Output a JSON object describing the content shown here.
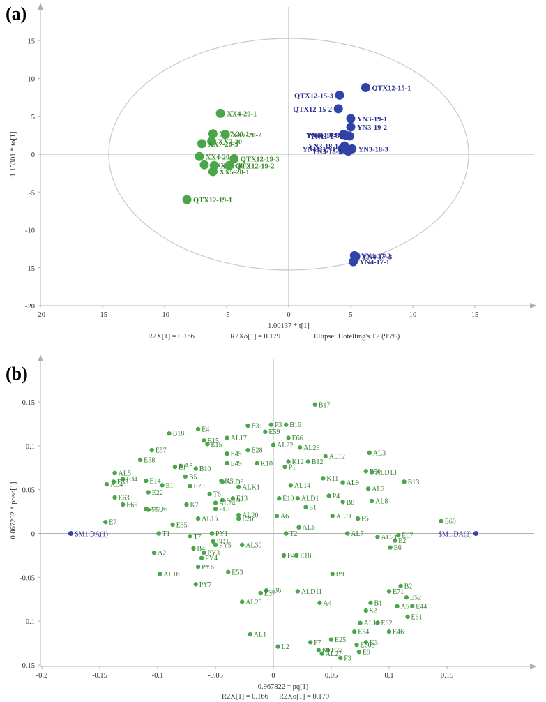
{
  "colors": {
    "green": "#4aa64a",
    "blue": "#3043a8",
    "axis": "#b0b0b0",
    "ellipse": "#c8c8c8"
  },
  "chart_data": [
    {
      "panel": "(a)",
      "type": "scatter",
      "xlabel": "1.00137 * t[1]",
      "ylabel": "1.15301 * to[1]",
      "xlim": [
        -20,
        20
      ],
      "ylim": [
        -20,
        20
      ],
      "xticks": [
        "-20",
        "-15",
        "-10",
        "-5",
        "0",
        "5",
        "10",
        "15"
      ],
      "yticks": [
        "-20",
        "-15",
        "-10",
        "-5",
        "0",
        "5",
        "10",
        "15"
      ],
      "annotations": [
        "R2X[1] = 0.166",
        "R2Xo[1] = 0.179",
        "Ellipse: Hotelling's T2 (95%)"
      ],
      "ellipse": {
        "rx": 14.5,
        "ry": 15.3
      },
      "series": [
        {
          "name": "green",
          "points": [
            {
              "label": "XX4-20-1",
              "x": -5.5,
              "y": 5.4
            },
            {
              "label": "XX7-20-1",
              "x": -6.1,
              "y": 2.7
            },
            {
              "label": "XX7-20-2",
              "x": -5.1,
              "y": 2.6
            },
            {
              "label": "XX7-20",
              "x": -6.2,
              "y": 1.7
            },
            {
              "label": "XX7-20-3",
              "x": -7.0,
              "y": 1.4
            },
            {
              "label": "XX4-20-2",
              "x": -7.2,
              "y": -0.3
            },
            {
              "label": "QTX12-19-3",
              "x": -4.4,
              "y": -0.6
            },
            {
              "label": "XX5-20-2",
              "x": -6.8,
              "y": -1.4
            },
            {
              "label": "XX4-20-3",
              "x": -6.0,
              "y": -1.5
            },
            {
              "label": "QTX12-19-2",
              "x": -4.8,
              "y": -1.5
            },
            {
              "label": "XX5-20-1",
              "x": -6.1,
              "y": -2.3
            },
            {
              "label": "QTX12-19-1",
              "x": -8.2,
              "y": -6.0
            }
          ]
        },
        {
          "name": "blue",
          "points": [
            {
              "label": "QTX12-15-1",
              "x": 6.2,
              "y": 8.8
            },
            {
              "label": "QTX12-15-3",
              "x": 4.1,
              "y": 7.8
            },
            {
              "label": "QTX12-15-2",
              "x": 4.0,
              "y": 6.0
            },
            {
              "label": "YN3-19-1",
              "x": 5.0,
              "y": 4.7
            },
            {
              "label": "YN3-19-2",
              "x": 5.0,
              "y": 3.6
            },
            {
              "label": "YN3-19-3",
              "x": 4.4,
              "y": 2.6
            },
            {
              "label": "YN11-17-3",
              "x": 4.6,
              "y": 2.5
            },
            {
              "label": "YN11-17-2",
              "x": 4.9,
              "y": 2.4
            },
            {
              "label": "YN3-18-1",
              "x": 4.5,
              "y": 1.1
            },
            {
              "label": "YN11-17-1",
              "x": 4.3,
              "y": 0.7
            },
            {
              "label": "YN3-18-3",
              "x": 5.1,
              "y": 0.7
            },
            {
              "label": "YN3-18-2",
              "x": 4.8,
              "y": 0.4
            },
            {
              "label": "YN4-17-2",
              "x": 5.3,
              "y": -13.4
            },
            {
              "label": "YN4-17-3",
              "x": 5.4,
              "y": -13.5
            },
            {
              "label": "YN4-17-1",
              "x": 5.2,
              "y": -14.2
            }
          ]
        }
      ]
    },
    {
      "panel": "(b)",
      "type": "scatter",
      "xlabel": "0.967822 * pq[1]",
      "ylabel": "0.867292 * poso[1]",
      "xlim": [
        -0.2,
        0.2
      ],
      "ylim": [
        -0.15,
        0.15
      ],
      "xticks": [
        "-0.2",
        "-0.15",
        "-0.1",
        "-0.05",
        "0",
        "0.05",
        "0.1",
        "0.15"
      ],
      "yticks": [
        "-0.15",
        "-0.1",
        "-0.05",
        "0",
        "0.05",
        "0.1",
        "0.15"
      ],
      "annotations": [
        "R2X[1] = 0.166",
        "R2Xo[1] = 0.179"
      ],
      "series": [
        {
          "name": "class",
          "points": [
            {
              "label": "$M1.DA(1)",
              "x": -0.175,
              "y": 0.0
            },
            {
              "label": "$M1.DA(2)",
              "x": 0.175,
              "y": 0.0
            }
          ]
        },
        {
          "name": "variables",
          "points": [
            {
              "label": "B17",
              "x": 0.036,
              "y": 0.147
            },
            {
              "label": "B18",
              "x": -0.09,
              "y": 0.114
            },
            {
              "label": "E4",
              "x": -0.065,
              "y": 0.119
            },
            {
              "label": "B15",
              "x": -0.06,
              "y": 0.106
            },
            {
              "label": "E15",
              "x": -0.057,
              "y": 0.102
            },
            {
              "label": "AL17",
              "x": -0.04,
              "y": 0.109
            },
            {
              "label": "E31",
              "x": -0.022,
              "y": 0.123
            },
            {
              "label": "P3",
              "x": -0.002,
              "y": 0.124
            },
            {
              "label": "B16",
              "x": 0.011,
              "y": 0.124
            },
            {
              "label": "E59",
              "x": -0.007,
              "y": 0.116
            },
            {
              "label": "E66",
              "x": 0.013,
              "y": 0.109
            },
            {
              "label": "AL22",
              "x": 0.0,
              "y": 0.101
            },
            {
              "label": "AL29",
              "x": 0.023,
              "y": 0.098
            },
            {
              "label": "E57",
              "x": -0.105,
              "y": 0.095
            },
            {
              "label": "E58",
              "x": -0.115,
              "y": 0.084
            },
            {
              "label": "E28",
              "x": -0.022,
              "y": 0.095
            },
            {
              "label": "E45",
              "x": -0.04,
              "y": 0.091
            },
            {
              "label": "AL3",
              "x": 0.083,
              "y": 0.092
            },
            {
              "label": "A8",
              "x": -0.08,
              "y": 0.077
            },
            {
              "label": "L1",
              "x": -0.085,
              "y": 0.076
            },
            {
              "label": "B10",
              "x": -0.067,
              "y": 0.074
            },
            {
              "label": "E49",
              "x": -0.04,
              "y": 0.08
            },
            {
              "label": "K10",
              "x": -0.014,
              "y": 0.08
            },
            {
              "label": "B12",
              "x": 0.03,
              "y": 0.082
            },
            {
              "label": "K12",
              "x": 0.013,
              "y": 0.082
            },
            {
              "label": "P1",
              "x": 0.01,
              "y": 0.076
            },
            {
              "label": "AL12",
              "x": 0.045,
              "y": 0.088
            },
            {
              "label": "B13",
              "x": 0.113,
              "y": 0.059
            },
            {
              "label": "AL5",
              "x": -0.137,
              "y": 0.069
            },
            {
              "label": "AL4",
              "x": -0.144,
              "y": 0.056
            },
            {
              "label": "E63",
              "x": -0.137,
              "y": 0.041
            },
            {
              "label": "E65",
              "x": -0.13,
              "y": 0.033
            },
            {
              "label": "F5",
              "x": 0.073,
              "y": 0.017
            },
            {
              "label": "E7",
              "x": -0.145,
              "y": 0.013
            },
            {
              "label": "E35",
              "x": -0.087,
              "y": 0.01
            },
            {
              "label": "E60",
              "x": 0.145,
              "y": 0.014
            },
            {
              "label": "T1",
              "x": -0.099,
              "y": 0.0
            },
            {
              "label": "T7",
              "x": -0.072,
              "y": -0.003
            },
            {
              "label": "PY1",
              "x": -0.053,
              "y": 0.0
            },
            {
              "label": "A2",
              "x": -0.103,
              "y": -0.022
            },
            {
              "label": "AL16",
              "x": -0.098,
              "y": -0.046
            },
            {
              "label": "PY7",
              "x": -0.067,
              "y": -0.058
            },
            {
              "label": "E53",
              "x": -0.039,
              "y": -0.044
            },
            {
              "label": "AL30",
              "x": -0.027,
              "y": -0.013
            },
            {
              "label": "T2",
              "x": 0.011,
              "y": 0.0
            },
            {
              "label": "E47",
              "x": 0.009,
              "y": -0.025
            },
            {
              "label": "E18",
              "x": 0.02,
              "y": -0.025
            },
            {
              "label": "B9",
              "x": 0.051,
              "y": -0.046
            },
            {
              "label": "E36",
              "x": -0.006,
              "y": -0.065
            },
            {
              "label": "ALD11",
              "x": 0.021,
              "y": -0.066
            },
            {
              "label": "AL28",
              "x": -0.027,
              "y": -0.078
            },
            {
              "label": "A4",
              "x": 0.04,
              "y": -0.079
            },
            {
              "label": "B2",
              "x": 0.11,
              "y": -0.06
            },
            {
              "label": "B1",
              "x": 0.084,
              "y": -0.079
            },
            {
              "label": "S2",
              "x": 0.08,
              "y": -0.088
            },
            {
              "label": "E52",
              "x": 0.115,
              "y": -0.073
            },
            {
              "label": "E71",
              "x": 0.1,
              "y": -0.066
            },
            {
              "label": "E46",
              "x": 0.1,
              "y": -0.112
            },
            {
              "label": "AL1",
              "x": -0.02,
              "y": -0.115
            },
            {
              "label": "L2",
              "x": 0.004,
              "y": -0.129
            },
            {
              "label": "F7",
              "x": 0.032,
              "y": -0.124
            },
            {
              "label": "E25",
              "x": 0.05,
              "y": -0.121
            },
            {
              "label": "E62",
              "x": 0.09,
              "y": -0.102
            },
            {
              "label": "K3",
              "x": 0.08,
              "y": -0.124
            },
            {
              "label": "E9",
              "x": 0.074,
              "y": -0.135
            },
            {
              "label": "F3",
              "x": 0.058,
              "y": -0.142
            },
            {
              "label": "E6",
              "x": 0.101,
              "y": -0.016
            },
            {
              "label": "E67",
              "x": 0.108,
              "y": -0.002
            },
            {
              "label": "E2",
              "x": 0.105,
              "y": -0.008
            },
            {
              "label": "AL21",
              "x": 0.09,
              "y": -0.004
            },
            {
              "label": "AL7",
              "x": 0.064,
              "y": 0.0
            },
            {
              "label": "AL11",
              "x": 0.051,
              "y": 0.02
            },
            {
              "label": "AL6",
              "x": 0.022,
              "y": 0.007
            },
            {
              "label": "A6",
              "x": 0.003,
              "y": 0.02
            },
            {
              "label": "E26",
              "x": -0.03,
              "y": 0.017
            },
            {
              "label": "AL20",
              "x": -0.03,
              "y": 0.021
            },
            {
              "label": "AL15",
              "x": -0.065,
              "y": 0.017
            },
            {
              "label": "K7",
              "x": -0.075,
              "y": 0.033
            },
            {
              "label": "T6",
              "x": -0.055,
              "y": 0.045
            },
            {
              "label": "E13",
              "x": -0.035,
              "y": 0.04
            },
            {
              "label": "AL8",
              "x": 0.085,
              "y": 0.037
            },
            {
              "label": "AL2",
              "x": 0.082,
              "y": 0.051
            },
            {
              "label": "E50",
              "x": 0.08,
              "y": 0.071
            },
            {
              "label": "ALD13",
              "x": 0.085,
              "y": 0.07
            },
            {
              "label": "AL9",
              "x": 0.06,
              "y": 0.058
            },
            {
              "label": "K11",
              "x": 0.043,
              "y": 0.063
            },
            {
              "label": "S1",
              "x": 0.028,
              "y": 0.03
            },
            {
              "label": "P4",
              "x": 0.048,
              "y": 0.043
            },
            {
              "label": "B8",
              "x": 0.06,
              "y": 0.036
            },
            {
              "label": "E10",
              "x": 0.005,
              "y": 0.04
            },
            {
              "label": "ALD1",
              "x": 0.021,
              "y": 0.04
            },
            {
              "label": "AL14",
              "x": 0.015,
              "y": 0.055
            },
            {
              "label": "AL19",
              "x": 0.075,
              "y": -0.102
            },
            {
              "label": "E54",
              "x": 0.07,
              "y": -0.112
            },
            {
              "label": "E61",
              "x": 0.116,
              "y": -0.095
            },
            {
              "label": "E44",
              "x": 0.12,
              "y": -0.083
            },
            {
              "label": "A5",
              "x": 0.107,
              "y": -0.083
            },
            {
              "label": "PY3",
              "x": -0.06,
              "y": -0.022
            },
            {
              "label": "PY4",
              "x": -0.062,
              "y": -0.028
            },
            {
              "label": "PY5",
              "x": -0.05,
              "y": -0.013
            },
            {
              "label": "PY6",
              "x": -0.065,
              "y": -0.038
            },
            {
              "label": "B4",
              "x": -0.069,
              "y": -0.017
            },
            {
              "label": "PD1",
              "x": -0.052,
              "y": -0.009
            },
            {
              "label": "E37",
              "x": -0.011,
              "y": -0.068
            },
            {
              "label": "AL27",
              "x": 0.042,
              "y": -0.137
            },
            {
              "label": "E27",
              "x": 0.047,
              "y": -0.133
            },
            {
              "label": "K1",
              "x": 0.039,
              "y": -0.133
            },
            {
              "label": "E60b",
              "x": 0.072,
              "y": -0.127
            },
            {
              "label": "ALD6",
              "x": -0.11,
              "y": 0.028
            },
            {
              "label": "F5b",
              "x": -0.108,
              "y": 0.027
            },
            {
              "label": "E70",
              "x": -0.072,
              "y": 0.054
            },
            {
              "label": "ALK1",
              "x": -0.03,
              "y": 0.053
            },
            {
              "label": "K5",
              "x": -0.045,
              "y": 0.06
            },
            {
              "label": "ALD2",
              "x": -0.044,
              "y": 0.038
            },
            {
              "label": "AL24",
              "x": -0.05,
              "y": 0.035
            },
            {
              "label": "PL1",
              "x": -0.05,
              "y": 0.028
            },
            {
              "label": "E22",
              "x": -0.108,
              "y": 0.047
            },
            {
              "label": "E14",
              "x": -0.11,
              "y": 0.06
            },
            {
              "label": "E34",
              "x": -0.13,
              "y": 0.062
            },
            {
              "label": "E33",
              "x": -0.138,
              "y": 0.059
            },
            {
              "label": "B5",
              "x": -0.076,
              "y": 0.065
            },
            {
              "label": "E1",
              "x": -0.096,
              "y": 0.055
            },
            {
              "label": "ALD9",
              "x": -0.044,
              "y": 0.059
            }
          ]
        }
      ]
    }
  ]
}
